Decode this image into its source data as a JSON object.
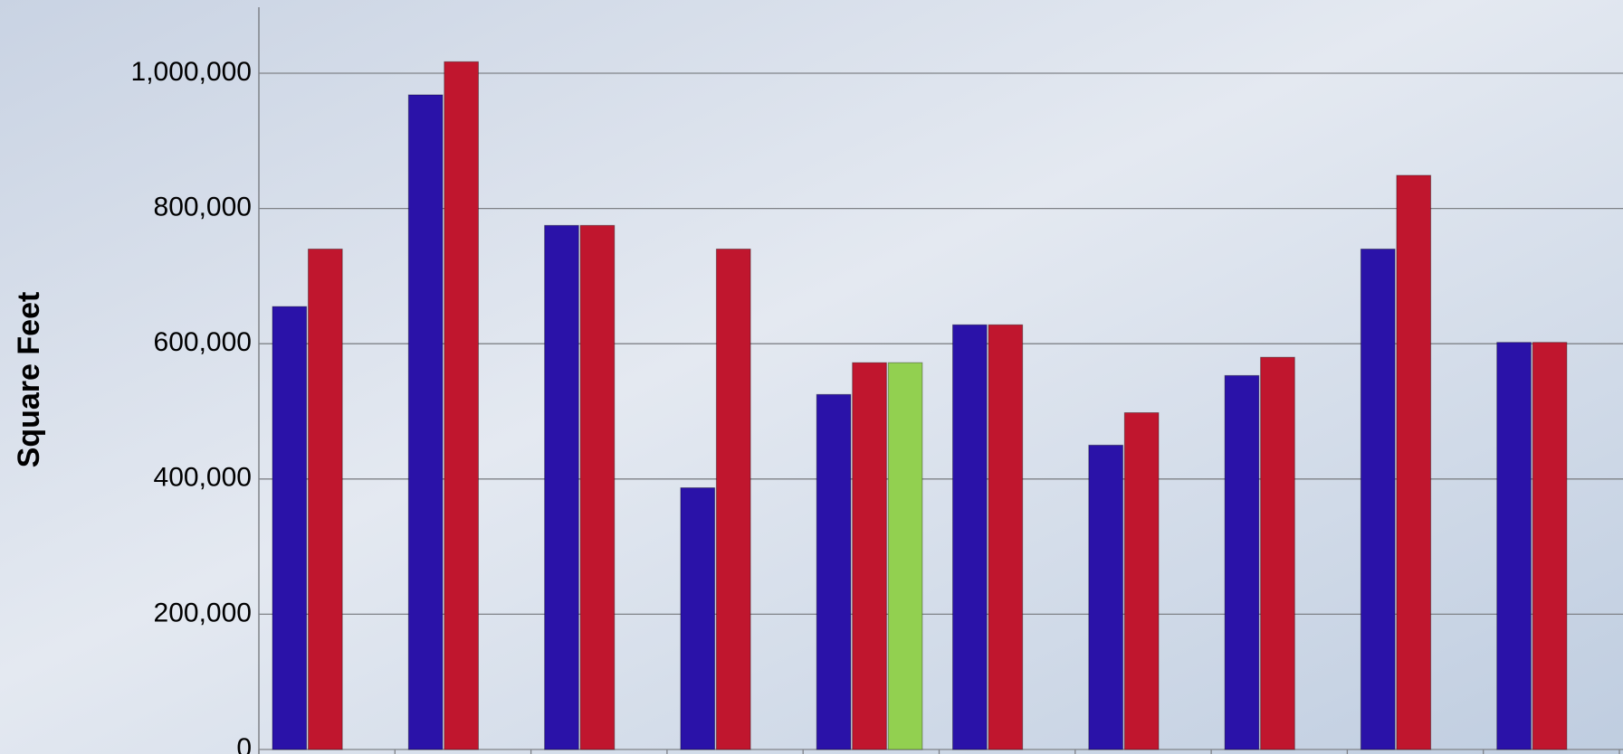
{
  "chart_data": {
    "type": "bar",
    "y_label": "Square Feet",
    "categories": [
      null,
      null,
      null,
      null,
      null,
      null,
      null,
      null,
      null,
      null
    ],
    "series": [
      {
        "color": "#2a12a8",
        "values": [
          655000,
          968000,
          775000,
          387000,
          525000,
          628000,
          450000,
          553000,
          740000,
          602000
        ]
      },
      {
        "color": "#c0162e",
        "values": [
          740000,
          1017000,
          775000,
          740000,
          572000,
          628000,
          498000,
          580000,
          849000,
          602000
        ]
      },
      {
        "color": "#92d050",
        "values": [
          null,
          null,
          null,
          null,
          572000,
          null,
          null,
          null,
          null,
          null
        ]
      }
    ],
    "ylim": [
      0,
      1000000
    ],
    "yticks": [
      0,
      {
        "value": 200000,
        "label": "200,000"
      },
      {
        "value": 400000,
        "label": "400,000"
      },
      {
        "value": 600000,
        "label": "600,000"
      },
      {
        "value": 800000,
        "label": "800,000"
      },
      {
        "value": 1000000,
        "label": "1,000,000"
      }
    ],
    "grid": true
  }
}
